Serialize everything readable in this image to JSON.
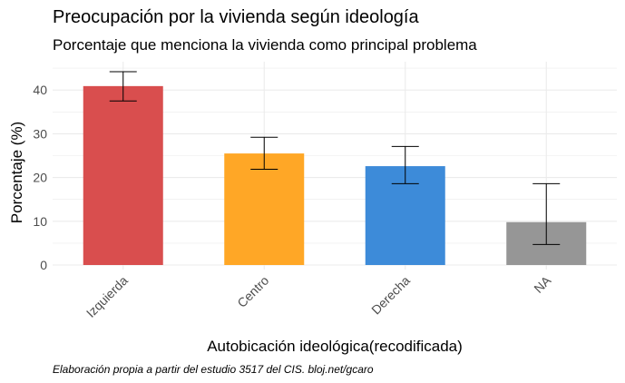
{
  "chart_data": {
    "type": "bar",
    "title": "Preocupación por la vivienda según ideología",
    "subtitle": "Porcentaje que menciona la vivienda como principal problema",
    "xlabel": "Autobicación ideológica(recodificada)",
    "ylabel": "Porcentaje (%)",
    "caption": "Elaboración propia a partir del estudio 3517 del CIS. bloj.net/gcaro",
    "categories": [
      "Izquierda",
      "Centro",
      "Derecha",
      "NA"
    ],
    "values": [
      40.9,
      25.5,
      22.6,
      9.8
    ],
    "error_low": [
      37.5,
      21.9,
      18.6,
      4.7
    ],
    "error_high": [
      44.2,
      29.2,
      27.1,
      18.6
    ],
    "colors": [
      "#d94e4e",
      "#ffa726",
      "#3d8bd9",
      "#969696"
    ],
    "ylim": [
      0,
      46
    ],
    "yticks": [
      "0",
      "10",
      "20",
      "30",
      "40"
    ],
    "grid": true,
    "legend": "none"
  }
}
